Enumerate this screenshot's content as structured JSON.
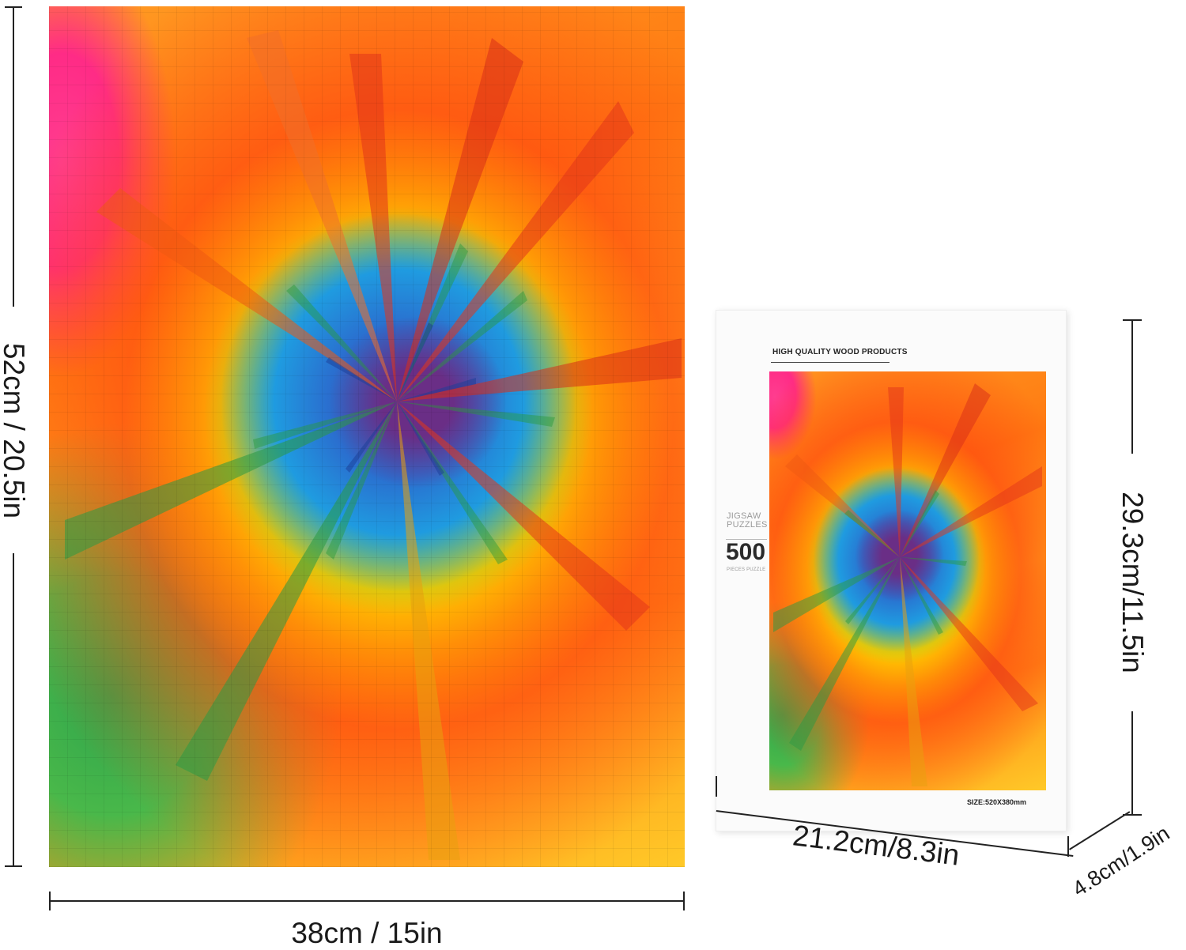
{
  "puzzle": {
    "colors": {
      "purple": "#6a2e86",
      "blue": "#2a6fcf",
      "green": "#3fb24b",
      "yellow": "#ffd21f",
      "red": "#ff4b10",
      "orange": "#ff8a15",
      "pink": "#ff2b86"
    }
  },
  "dimensions": {
    "puzzle_height": "52cm / 20.5in",
    "puzzle_width": "38cm / 15in",
    "box_height": "29.3cm/11.5in",
    "box_width": "21.2cm/8.3in",
    "box_depth": "4.8cm/1.9in"
  },
  "box": {
    "brand": "HIGH QUALITY WOOD PRODUCTS",
    "jigsaw_line1": "JIGSAW",
    "jigsaw_line2": "PUZZLES",
    "piece_count": "500",
    "pieces_label": "PIECES PUZZLE",
    "size_label": "SIZE:520X380mm"
  }
}
